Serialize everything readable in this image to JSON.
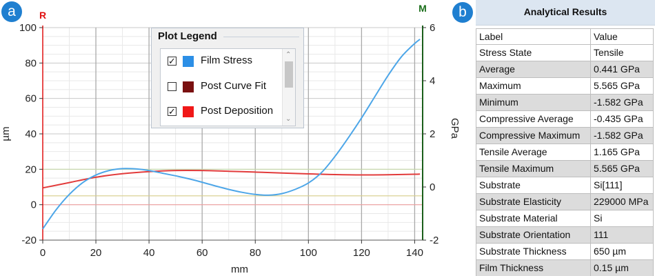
{
  "badges": {
    "left": "a",
    "right": "b"
  },
  "chart_data": {
    "type": "line",
    "xlabel": "mm",
    "ylabel_left": "µm",
    "ylabel_right": "GPa",
    "corner_left": "R",
    "corner_right": "M",
    "xlim": [
      0,
      143
    ],
    "ylim_left": [
      -20,
      100
    ],
    "ylim_right": [
      -2,
      6
    ],
    "x_ticks": [
      0,
      20,
      40,
      60,
      80,
      100,
      120,
      140
    ],
    "y_left_ticks": [
      -20,
      0,
      20,
      40,
      60,
      80,
      100
    ],
    "y_right_ticks": [
      -2,
      0,
      2,
      4,
      6
    ],
    "grid": true,
    "colors": {
      "film_stress": "#4da6e8",
      "post_deposition": "#e23b3b",
      "corner_left": "#e01010",
      "corner_right": "#1a6e1a"
    },
    "series": [
      {
        "name": "Film Stress",
        "axis": "right",
        "x": [
          0,
          5,
          10,
          15,
          20,
          25,
          30,
          35,
          40,
          45,
          50,
          55,
          60,
          65,
          70,
          75,
          80,
          85,
          90,
          95,
          100,
          105,
          110,
          115,
          120,
          125,
          130,
          135,
          140,
          142
        ],
        "y": [
          -1.58,
          -0.86,
          -0.28,
          0.16,
          0.45,
          0.62,
          0.69,
          0.68,
          0.62,
          0.52,
          0.42,
          0.31,
          0.18,
          0.04,
          -0.09,
          -0.2,
          -0.28,
          -0.31,
          -0.25,
          -0.09,
          0.15,
          0.55,
          1.15,
          1.85,
          2.6,
          3.4,
          4.2,
          4.9,
          5.4,
          5.56
        ]
      },
      {
        "name": "Post Deposition",
        "axis": "left",
        "x": [
          0,
          10,
          20,
          30,
          40,
          50,
          60,
          70,
          80,
          90,
          100,
          110,
          120,
          130,
          140,
          142
        ],
        "y": [
          9.5,
          12.5,
          15.5,
          17.5,
          18.7,
          19.3,
          19.3,
          18.9,
          18.4,
          17.9,
          17.4,
          17.0,
          16.8,
          16.9,
          17.2,
          17.3
        ]
      }
    ],
    "reference_lines_left": [
      0,
      5,
      20
    ]
  },
  "legend": {
    "title": "Plot Legend",
    "items": [
      {
        "label": "Film Stress",
        "checked": true,
        "check": "✓",
        "color": "#2c8fe6"
      },
      {
        "label": "Post Curve Fit",
        "checked": false,
        "check": "",
        "color": "#7a1010"
      },
      {
        "label": "Post Deposition",
        "checked": true,
        "check": "✓",
        "color": "#f01818"
      }
    ],
    "scroll_up": "⌃",
    "scroll_down": "⌄"
  },
  "table": {
    "title": "Analytical Results",
    "headers": [
      "Label",
      "Value"
    ],
    "rows": [
      [
        "Stress State",
        "Tensile"
      ],
      [
        "Average",
        "0.441 GPa"
      ],
      [
        "Maximum",
        "5.565 GPa"
      ],
      [
        "Minimum",
        "-1.582 GPa"
      ],
      [
        "Compressive Average",
        "-0.435 GPa"
      ],
      [
        "Compressive Maximum",
        "-1.582 GPa"
      ],
      [
        "Tensile Average",
        "1.165 GPa"
      ],
      [
        "Tensile Maximum",
        "5.565 GPa"
      ],
      [
        "Substrate",
        "Si[111]"
      ],
      [
        "Substrate Elasticity",
        "229000 MPa"
      ],
      [
        "Substrate Material",
        "Si"
      ],
      [
        "Substrate Orientation",
        "111"
      ],
      [
        "Substrate Thickness",
        "650 µm"
      ],
      [
        "Film Thickness",
        "0.15 µm"
      ]
    ]
  }
}
